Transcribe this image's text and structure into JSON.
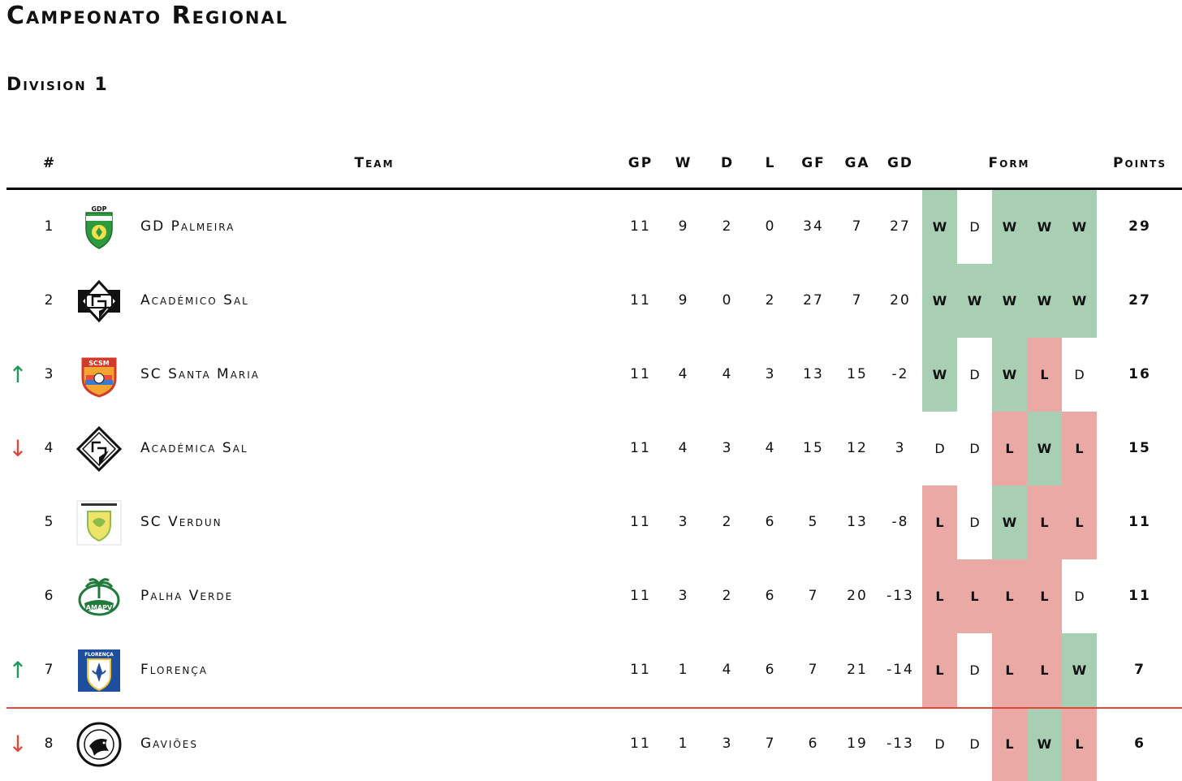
{
  "title": "Campeonato Regional",
  "subtitle": "Division 1",
  "headers": {
    "pos": "#",
    "team": "Team",
    "gp": "GP",
    "w": "W",
    "d": "D",
    "l": "L",
    "gf": "GF",
    "ga": "GA",
    "gd": "GD",
    "form": "Form",
    "points": "Points"
  },
  "colors": {
    "win": "#a8cfb4",
    "loss": "#eaa9a5",
    "up": "#1d9a5a",
    "down": "#e0473c"
  },
  "rows": [
    {
      "pos": "1",
      "team": "GD Palmeira",
      "logo": "gd-palmeira-logo",
      "gp": "11",
      "w": "9",
      "d": "2",
      "l": "0",
      "gf": "34",
      "ga": "7",
      "gd": "27",
      "form": [
        "W",
        "D",
        "W",
        "W",
        "W"
      ],
      "points": "29",
      "trend": ""
    },
    {
      "pos": "2",
      "team": "Académico Sal",
      "logo": "academico-sal-logo",
      "gp": "11",
      "w": "9",
      "d": "0",
      "l": "2",
      "gf": "27",
      "ga": "7",
      "gd": "20",
      "form": [
        "W",
        "W",
        "W",
        "W",
        "W"
      ],
      "points": "27",
      "trend": ""
    },
    {
      "pos": "3",
      "team": "SC Santa Maria",
      "logo": "sc-santa-maria-logo",
      "gp": "11",
      "w": "4",
      "d": "4",
      "l": "3",
      "gf": "13",
      "ga": "15",
      "gd": "-2",
      "form": [
        "W",
        "D",
        "W",
        "L",
        "D"
      ],
      "points": "16",
      "trend": "↑"
    },
    {
      "pos": "4",
      "team": "Académica Sal",
      "logo": "academica-sal-logo",
      "gp": "11",
      "w": "4",
      "d": "3",
      "l": "4",
      "gf": "15",
      "ga": "12",
      "gd": "3",
      "form": [
        "D",
        "D",
        "L",
        "W",
        "L"
      ],
      "points": "15",
      "trend": "↓"
    },
    {
      "pos": "5",
      "team": "SC Verdun",
      "logo": "sc-verdun-logo",
      "gp": "11",
      "w": "3",
      "d": "2",
      "l": "6",
      "gf": "5",
      "ga": "13",
      "gd": "-8",
      "form": [
        "L",
        "D",
        "W",
        "L",
        "L"
      ],
      "points": "11",
      "trend": ""
    },
    {
      "pos": "6",
      "team": "Palha Verde",
      "logo": "palha-verde-logo",
      "gp": "11",
      "w": "3",
      "d": "2",
      "l": "6",
      "gf": "7",
      "ga": "20",
      "gd": "-13",
      "form": [
        "L",
        "L",
        "L",
        "L",
        "D"
      ],
      "points": "11",
      "trend": ""
    },
    {
      "pos": "7",
      "team": "Florença",
      "logo": "florenca-logo",
      "gp": "11",
      "w": "1",
      "d": "4",
      "l": "6",
      "gf": "7",
      "ga": "21",
      "gd": "-14",
      "form": [
        "L",
        "D",
        "L",
        "L",
        "W"
      ],
      "points": "7",
      "trend": "↑"
    },
    {
      "pos": "8",
      "team": "Gaviões",
      "logo": "gavioes-logo",
      "gp": "11",
      "w": "1",
      "d": "3",
      "l": "7",
      "gf": "6",
      "ga": "19",
      "gd": "-13",
      "form": [
        "D",
        "D",
        "L",
        "W",
        "L"
      ],
      "points": "6",
      "trend": "↓"
    }
  ],
  "logo_text": {
    "gd-palmeira-logo": "GDP",
    "sc-santa-maria-logo": "SCSM",
    "palha-verde-logo": "AMAPV",
    "florenca-logo": "FLORENÇA"
  }
}
